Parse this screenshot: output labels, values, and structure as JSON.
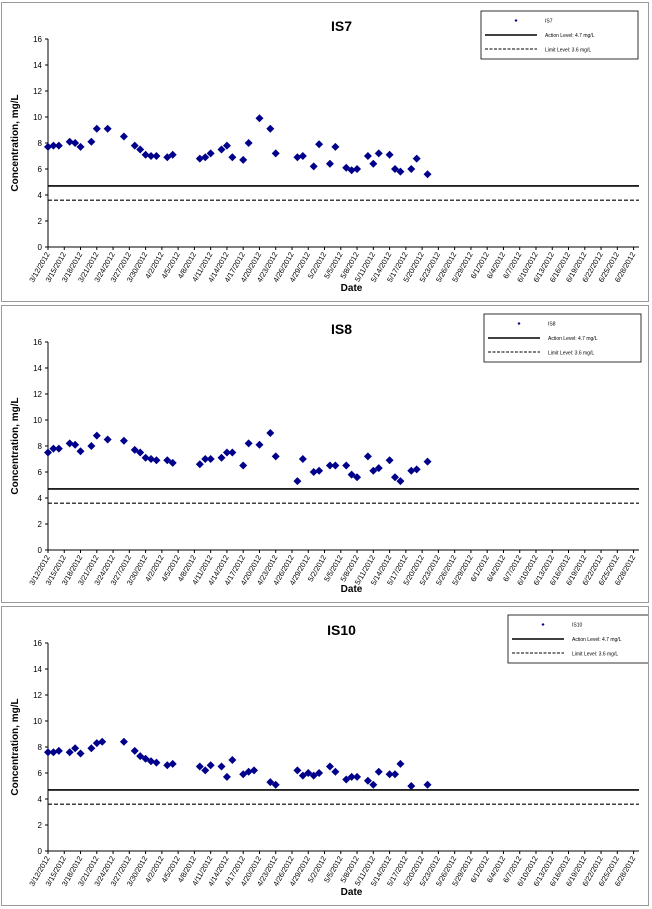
{
  "chart_data": [
    {
      "type": "scatter",
      "title": "IS7",
      "xlabel": "Date",
      "ylabel": "Concentration, mg/L",
      "ylim": [
        0,
        16
      ],
      "yticks": [
        0,
        2,
        4,
        6,
        8,
        10,
        12,
        14,
        16
      ],
      "xlim": [
        "3/12/2012",
        "6/29/2012"
      ],
      "xticks": [
        "3/12/2012",
        "3/15/2012",
        "3/18/2012",
        "3/21/2012",
        "3/24/2012",
        "3/27/2012",
        "3/30/2012",
        "4/2/2012",
        "4/5/2012",
        "4/8/2012",
        "4/11/2012",
        "4/14/2012",
        "4/17/2012",
        "4/20/2012",
        "4/23/2012",
        "4/26/2012",
        "4/29/2012",
        "5/2/2012",
        "5/5/2012",
        "5/8/2012",
        "5/11/2012",
        "5/14/2012",
        "5/17/2012",
        "5/20/2012",
        "5/23/2012",
        "5/26/2012",
        "5/29/2012",
        "6/1/2012",
        "6/4/2012",
        "6/7/2012",
        "6/10/2012",
        "6/13/2012",
        "6/16/2012",
        "6/19/2012",
        "6/22/2012",
        "6/25/2012",
        "6/28/2012"
      ],
      "grid": false,
      "legend_position": "top-right",
      "legend": [
        "IS7",
        "Action Level: 4.7 mg/L",
        "Limit Level: 3.6 mg/L"
      ],
      "series": [
        {
          "name": "IS7",
          "color": "#00008b",
          "marker": "diamond",
          "points": [
            [
              "3/12/2012",
              7.7
            ],
            [
              "3/13/2012",
              7.8
            ],
            [
              "3/14/2012",
              7.8
            ],
            [
              "3/16/2012",
              8.1
            ],
            [
              "3/17/2012",
              8.0
            ],
            [
              "3/18/2012",
              7.7
            ],
            [
              "3/20/2012",
              8.1
            ],
            [
              "3/21/2012",
              9.1
            ],
            [
              "3/23/2012",
              9.1
            ],
            [
              "3/26/2012",
              8.5
            ],
            [
              "3/28/2012",
              7.8
            ],
            [
              "3/29/2012",
              7.5
            ],
            [
              "3/30/2012",
              7.1
            ],
            [
              "3/31/2012",
              7.0
            ],
            [
              "4/1/2012",
              7.0
            ],
            [
              "4/3/2012",
              6.9
            ],
            [
              "4/4/2012",
              7.1
            ],
            [
              "4/9/2012",
              6.8
            ],
            [
              "4/10/2012",
              6.9
            ],
            [
              "4/11/2012",
              7.2
            ],
            [
              "4/13/2012",
              7.5
            ],
            [
              "4/14/2012",
              7.8
            ],
            [
              "4/15/2012",
              6.9
            ],
            [
              "4/17/2012",
              6.7
            ],
            [
              "4/18/2012",
              8.0
            ],
            [
              "4/20/2012",
              9.9
            ],
            [
              "4/22/2012",
              9.1
            ],
            [
              "4/23/2012",
              7.2
            ],
            [
              "4/27/2012",
              6.9
            ],
            [
              "4/28/2012",
              7.0
            ],
            [
              "4/30/2012",
              6.2
            ],
            [
              "5/1/2012",
              7.9
            ],
            [
              "5/3/2012",
              6.4
            ],
            [
              "5/4/2012",
              7.7
            ],
            [
              "5/6/2012",
              6.1
            ],
            [
              "5/7/2012",
              5.9
            ],
            [
              "5/8/2012",
              6.0
            ],
            [
              "5/10/2012",
              7.0
            ],
            [
              "5/11/2012",
              6.4
            ],
            [
              "5/12/2012",
              7.2
            ],
            [
              "5/14/2012",
              7.1
            ],
            [
              "5/15/2012",
              6.0
            ],
            [
              "5/16/2012",
              5.8
            ],
            [
              "5/18/2012",
              6.0
            ],
            [
              "5/19/2012",
              6.8
            ],
            [
              "5/21/2012",
              5.6
            ]
          ]
        }
      ],
      "reference_lines": [
        {
          "name": "Action Level: 4.7 mg/L",
          "value": 4.7,
          "style": "solid"
        },
        {
          "name": "Limit Level: 3.6 mg/L",
          "value": 3.6,
          "style": "dashed"
        }
      ]
    },
    {
      "type": "scatter",
      "title": "IS8",
      "xlabel": "Date",
      "ylabel": "Concentration, mg/L",
      "ylim": [
        0,
        16
      ],
      "yticks": [
        0,
        2,
        4,
        6,
        8,
        10,
        12,
        14,
        16
      ],
      "xlim": [
        "3/12/2012",
        "6/29/2012"
      ],
      "xticks": [
        "3/12/2012",
        "3/15/2012",
        "3/18/2012",
        "3/21/2012",
        "3/24/2012",
        "3/27/2012",
        "3/30/2012",
        "4/2/2012",
        "4/5/2012",
        "4/8/2012",
        "4/11/2012",
        "4/14/2012",
        "4/17/2012",
        "4/20/2012",
        "4/23/2012",
        "4/26/2012",
        "4/29/2012",
        "5/2/2012",
        "5/5/2012",
        "5/8/2012",
        "5/11/2012",
        "5/14/2012",
        "5/17/2012",
        "5/20/2012",
        "5/23/2012",
        "5/26/2012",
        "5/29/2012",
        "6/1/2012",
        "6/4/2012",
        "6/7/2012",
        "6/10/2012",
        "6/13/2012",
        "6/16/2012",
        "6/19/2012",
        "6/22/2012",
        "6/25/2012",
        "6/28/2012"
      ],
      "grid": false,
      "legend_position": "top-right",
      "legend": [
        "IS8",
        "Action Level: 4.7 mg/L",
        "Limit Level: 3.6 mg/L"
      ],
      "series": [
        {
          "name": "IS8",
          "color": "#00008b",
          "marker": "diamond",
          "points": [
            [
              "3/12/2012",
              7.5
            ],
            [
              "3/13/2012",
              7.8
            ],
            [
              "3/14/2012",
              7.8
            ],
            [
              "3/16/2012",
              8.2
            ],
            [
              "3/17/2012",
              8.1
            ],
            [
              "3/18/2012",
              7.6
            ],
            [
              "3/20/2012",
              8.0
            ],
            [
              "3/21/2012",
              8.8
            ],
            [
              "3/23/2012",
              8.5
            ],
            [
              "3/26/2012",
              8.4
            ],
            [
              "3/28/2012",
              7.7
            ],
            [
              "3/29/2012",
              7.5
            ],
            [
              "3/30/2012",
              7.1
            ],
            [
              "3/31/2012",
              7.0
            ],
            [
              "4/1/2012",
              6.9
            ],
            [
              "4/3/2012",
              6.9
            ],
            [
              "4/4/2012",
              6.7
            ],
            [
              "4/9/2012",
              6.6
            ],
            [
              "4/10/2012",
              7.0
            ],
            [
              "4/11/2012",
              7.0
            ],
            [
              "4/13/2012",
              7.1
            ],
            [
              "4/14/2012",
              7.5
            ],
            [
              "4/15/2012",
              7.5
            ],
            [
              "4/17/2012",
              6.5
            ],
            [
              "4/18/2012",
              8.2
            ],
            [
              "4/20/2012",
              8.1
            ],
            [
              "4/22/2012",
              9.0
            ],
            [
              "4/23/2012",
              7.2
            ],
            [
              "4/27/2012",
              5.3
            ],
            [
              "4/28/2012",
              7.0
            ],
            [
              "4/30/2012",
              6.0
            ],
            [
              "5/1/2012",
              6.1
            ],
            [
              "5/3/2012",
              6.5
            ],
            [
              "5/4/2012",
              6.5
            ],
            [
              "5/6/2012",
              6.5
            ],
            [
              "5/7/2012",
              5.8
            ],
            [
              "5/8/2012",
              5.6
            ],
            [
              "5/10/2012",
              7.2
            ],
            [
              "5/11/2012",
              6.1
            ],
            [
              "5/12/2012",
              6.3
            ],
            [
              "5/14/2012",
              6.9
            ],
            [
              "5/15/2012",
              5.6
            ],
            [
              "5/16/2012",
              5.3
            ],
            [
              "5/18/2012",
              6.1
            ],
            [
              "5/19/2012",
              6.2
            ],
            [
              "5/21/2012",
              6.8
            ]
          ]
        }
      ],
      "reference_lines": [
        {
          "name": "Action Level: 4.7 mg/L",
          "value": 4.7,
          "style": "solid"
        },
        {
          "name": "Limit Level: 3.6 mg/L",
          "value": 3.6,
          "style": "dashed"
        }
      ]
    },
    {
      "type": "scatter",
      "title": "IS10",
      "xlabel": "Date",
      "ylabel": "Concentration, mg/L",
      "ylim": [
        0,
        16
      ],
      "yticks": [
        0,
        2,
        4,
        6,
        8,
        10,
        12,
        14,
        16
      ],
      "xlim": [
        "3/12/2012",
        "6/29/2012"
      ],
      "xticks": [
        "3/12/2012",
        "3/15/2012",
        "3/18/2012",
        "3/21/2012",
        "3/24/2012",
        "3/27/2012",
        "3/30/2012",
        "4/2/2012",
        "4/5/2012",
        "4/8/2012",
        "4/11/2012",
        "4/14/2012",
        "4/17/2012",
        "4/20/2012",
        "4/23/2012",
        "4/26/2012",
        "4/29/2012",
        "5/2/2012",
        "5/5/2012",
        "5/8/2012",
        "5/11/2012",
        "5/14/2012",
        "5/17/2012",
        "5/20/2012",
        "5/23/2012",
        "5/26/2012",
        "5/29/2012",
        "6/1/2012",
        "6/4/2012",
        "6/7/2012",
        "6/10/2012",
        "6/13/2012",
        "6/16/2012",
        "6/19/2012",
        "6/22/2012",
        "6/25/2012",
        "6/28/2012"
      ],
      "grid": false,
      "legend_position": "top-right",
      "legend": [
        "IS10",
        "Action Level: 4.7 mg/L",
        "Limit Level: 3.6 mg/L"
      ],
      "series": [
        {
          "name": "IS10",
          "color": "#00008b",
          "marker": "diamond",
          "points": [
            [
              "3/12/2012",
              7.6
            ],
            [
              "3/13/2012",
              7.6
            ],
            [
              "3/14/2012",
              7.7
            ],
            [
              "3/16/2012",
              7.6
            ],
            [
              "3/17/2012",
              7.9
            ],
            [
              "3/18/2012",
              7.5
            ],
            [
              "3/20/2012",
              7.9
            ],
            [
              "3/21/2012",
              8.3
            ],
            [
              "3/22/2012",
              8.4
            ],
            [
              "3/26/2012",
              8.4
            ],
            [
              "3/28/2012",
              7.7
            ],
            [
              "3/29/2012",
              7.3
            ],
            [
              "3/30/2012",
              7.1
            ],
            [
              "3/31/2012",
              6.9
            ],
            [
              "4/1/2012",
              6.8
            ],
            [
              "4/3/2012",
              6.6
            ],
            [
              "4/4/2012",
              6.7
            ],
            [
              "4/9/2012",
              6.5
            ],
            [
              "4/10/2012",
              6.2
            ],
            [
              "4/11/2012",
              6.6
            ],
            [
              "4/13/2012",
              6.5
            ],
            [
              "4/14/2012",
              5.7
            ],
            [
              "4/15/2012",
              7.0
            ],
            [
              "4/17/2012",
              5.9
            ],
            [
              "4/18/2012",
              6.1
            ],
            [
              "4/19/2012",
              6.2
            ],
            [
              "4/22/2012",
              5.3
            ],
            [
              "4/23/2012",
              5.1
            ],
            [
              "4/27/2012",
              6.2
            ],
            [
              "4/28/2012",
              5.8
            ],
            [
              "4/29/2012",
              6.0
            ],
            [
              "4/30/2012",
              5.8
            ],
            [
              "5/1/2012",
              6.0
            ],
            [
              "5/3/2012",
              6.5
            ],
            [
              "5/4/2012",
              6.1
            ],
            [
              "5/6/2012",
              5.5
            ],
            [
              "5/7/2012",
              5.7
            ],
            [
              "5/8/2012",
              5.7
            ],
            [
              "5/10/2012",
              5.4
            ],
            [
              "5/11/2012",
              5.1
            ],
            [
              "5/12/2012",
              6.1
            ],
            [
              "5/14/2012",
              5.9
            ],
            [
              "5/15/2012",
              5.9
            ],
            [
              "5/16/2012",
              6.7
            ],
            [
              "5/18/2012",
              5.0
            ],
            [
              "5/21/2012",
              5.1
            ]
          ]
        }
      ],
      "reference_lines": [
        {
          "name": "Action Level: 4.7 mg/L",
          "value": 4.7,
          "style": "solid"
        },
        {
          "name": "Limit Level: 3.6 mg/L",
          "value": 3.6,
          "style": "dashed"
        }
      ]
    }
  ]
}
